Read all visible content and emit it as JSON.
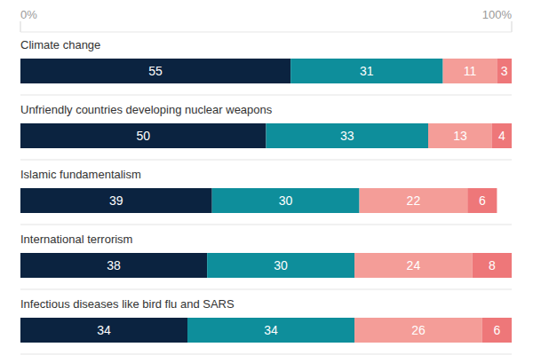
{
  "chart_data": {
    "type": "bar",
    "orientation": "horizontal",
    "stacked": true,
    "data_labels": true,
    "categories": [
      "Climate change",
      "Unfriendly countries developing nuclear weapons",
      "Islamic fundamentalism",
      "International terrorism",
      "Infectious diseases like bird flu and SARS"
    ],
    "series": [
      {
        "color": "#0b2340",
        "values": [
          55,
          50,
          39,
          38,
          34
        ]
      },
      {
        "color": "#0e8e9b",
        "values": [
          31,
          33,
          30,
          30,
          34
        ]
      },
      {
        "color": "#f49d98",
        "values": [
          11,
          13,
          22,
          24,
          26
        ]
      },
      {
        "color": "#ee7779",
        "values": [
          3,
          4,
          6,
          8,
          6
        ]
      }
    ],
    "xlim": [
      0,
      100
    ],
    "xticks": [
      {
        "value": 0,
        "label": "0%"
      },
      {
        "value": 100,
        "label": "100%"
      }
    ]
  }
}
